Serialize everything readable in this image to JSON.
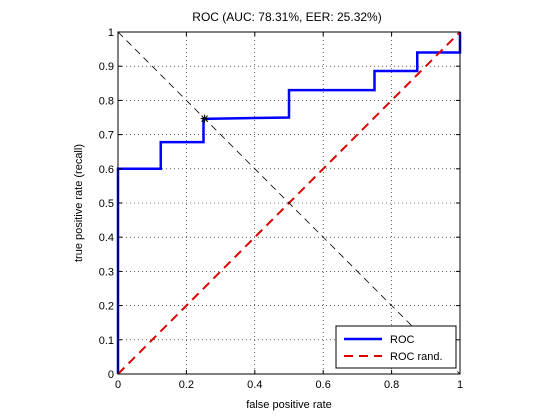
{
  "chart_data": {
    "type": "line",
    "title": "ROC (AUC: 78.31%, EER: 25.32%)",
    "xlabel": "false positive rate",
    "ylabel": "true positive rate (recall)",
    "xlim": [
      0,
      1
    ],
    "ylim": [
      0,
      1
    ],
    "x_ticks": [
      "0",
      "0.2",
      "0.4",
      "0.6",
      "0.8",
      "1"
    ],
    "y_ticks": [
      "0",
      "0.1",
      "0.2",
      "0.3",
      "0.4",
      "0.5",
      "0.6",
      "0.7",
      "0.8",
      "0.9",
      "1"
    ],
    "grid": true,
    "legend_position": "bottom-right",
    "series": [
      {
        "name": "ROC",
        "color": "#0000ff",
        "style": "solid",
        "x": [
          0,
          0,
          0.125,
          0.125,
          0.25,
          0.25,
          0.5,
          0.5,
          0.75,
          0.75,
          0.875,
          0.875,
          1,
          1
        ],
        "y": [
          0,
          0.6,
          0.6,
          0.678,
          0.678,
          0.746,
          0.75,
          0.83,
          0.83,
          0.886,
          0.886,
          0.94,
          0.94,
          1
        ]
      },
      {
        "name": "ROC rand.",
        "color": "#dd0000",
        "style": "dashed",
        "x": [
          0,
          1
        ],
        "y": [
          0,
          1
        ]
      },
      {
        "color": "#000000",
        "style": "dashed-thin",
        "x": [
          0,
          1
        ],
        "y": [
          1,
          0
        ]
      }
    ],
    "eer_point": {
      "x": 0.2532,
      "y": 0.7468,
      "color": "#000000"
    },
    "legend": [
      {
        "label": "ROC",
        "color": "#0000ff",
        "style": "solid"
      },
      {
        "label": "ROC rand.",
        "color": "#dd0000",
        "style": "dashed"
      }
    ]
  }
}
